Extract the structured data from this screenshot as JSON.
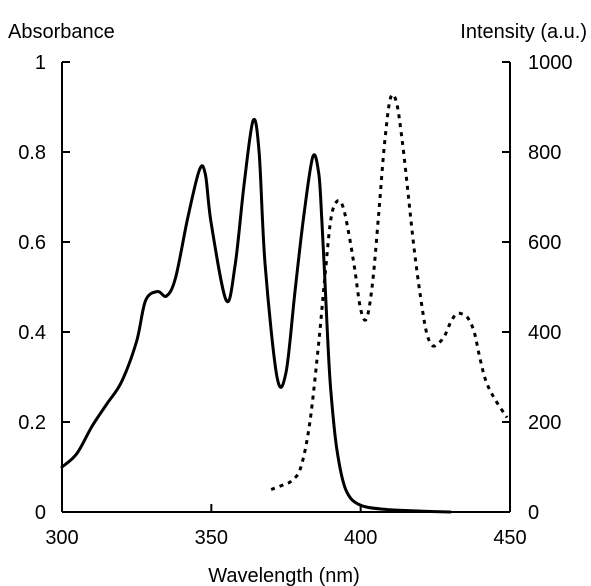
{
  "chart_data": {
    "type": "line",
    "title": "",
    "xlabel": "Wavelength (nm)",
    "ylabel_left": "Absorbance",
    "ylabel_right": "Intensity (a.u.)",
    "xlim": [
      300,
      450
    ],
    "ylim_left": [
      0,
      1
    ],
    "ylim_right": [
      0,
      1000
    ],
    "x_ticks": [
      "300",
      "350",
      "400",
      "450"
    ],
    "y_left_ticks": [
      "0",
      "0.2",
      "0.4",
      "0.6",
      "0.8",
      "1"
    ],
    "y_right_ticks": [
      "0",
      "200",
      "400",
      "600",
      "800",
      "1000"
    ],
    "grid": false,
    "series": [
      {
        "axis": "left",
        "style": "solid",
        "x": [
          300,
          305,
          310,
          315,
          320,
          325,
          328,
          332,
          335,
          338,
          342,
          346,
          348,
          350,
          355,
          358,
          361,
          364,
          366,
          368,
          372,
          375,
          378,
          381,
          384,
          386,
          387,
          388,
          389,
          390,
          392,
          395,
          400,
          410,
          420,
          430
        ],
        "y": [
          0.1,
          0.13,
          0.19,
          0.24,
          0.29,
          0.38,
          0.47,
          0.49,
          0.48,
          0.52,
          0.65,
          0.76,
          0.75,
          0.64,
          0.47,
          0.55,
          0.73,
          0.87,
          0.8,
          0.55,
          0.3,
          0.31,
          0.49,
          0.66,
          0.79,
          0.75,
          0.65,
          0.52,
          0.38,
          0.27,
          0.14,
          0.05,
          0.015,
          0.005,
          0.002,
          0.0
        ]
      },
      {
        "axis": "right",
        "style": "dotted",
        "x": [
          370,
          374,
          377,
          380,
          383,
          386,
          388,
          390,
          392,
          394,
          396,
          398,
          400,
          402,
          404,
          406,
          408,
          410,
          412,
          414,
          416,
          418,
          420,
          422,
          424,
          426,
          428,
          430,
          432,
          434,
          436,
          438,
          440,
          442,
          445,
          449
        ],
        "y": [
          50,
          60,
          70,
          100,
          200,
          380,
          520,
          650,
          690,
          680,
          620,
          540,
          450,
          430,
          510,
          660,
          820,
          920,
          910,
          820,
          700,
          580,
          480,
          400,
          370,
          375,
          390,
          420,
          440,
          440,
          430,
          400,
          340,
          290,
          250,
          210
        ]
      }
    ]
  }
}
